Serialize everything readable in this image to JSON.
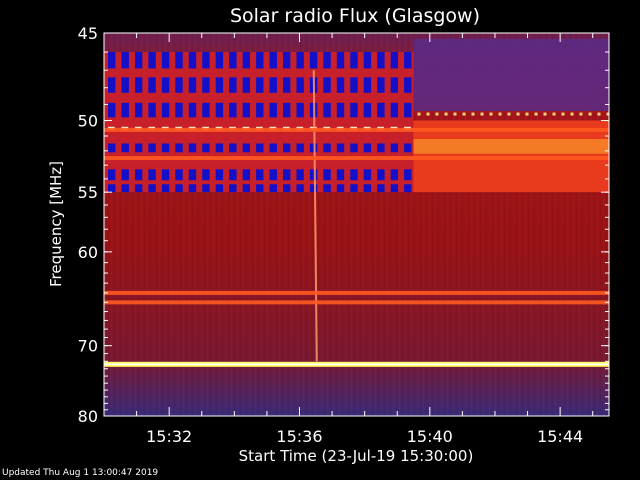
{
  "chart_data": {
    "type": "heatmap",
    "title": "Solar radio Flux (Glasgow)",
    "ylabel": "Frequency [MHz]",
    "xlabel": "Start Time (23-Jul-19 15:30:00)",
    "y_ticks": [
      "45",
      "50",
      "55",
      "60",
      "70",
      "80"
    ],
    "x_ticks": [
      "15:32",
      "15:36",
      "15:40",
      "15:44"
    ],
    "ylim_mhz": [
      45,
      80
    ],
    "xlim_minutes": [
      0,
      15.5
    ],
    "y_axis_scale": "reciprocal",
    "grid": false,
    "colormap": "black-blue-red-yellow-white",
    "features": {
      "pulsed_interference": {
        "freq_mhz": [
          46,
          55
        ],
        "until_time": "15:39:30"
      },
      "radio_burst_drift": {
        "time": "15:36:30",
        "freq_mhz": [
          47,
          72
        ]
      },
      "bright_bands_mhz": [
        50.6,
        52.5,
        64.0,
        65.0,
        72.4
      ]
    }
  },
  "footer": {
    "updated": "Updated Thu Aug  1 13:00:47 2019"
  },
  "colors": {
    "background": "#000000",
    "axis": "#ffffff",
    "bright_band": "#ffff60"
  }
}
